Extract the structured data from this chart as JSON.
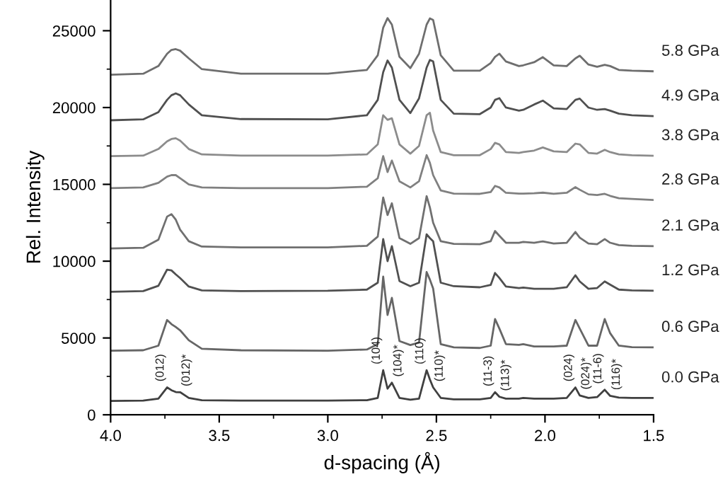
{
  "chart_data": {
    "type": "line",
    "xlabel": "d-spacing (Å)",
    "ylabel": "Rel. Intensity",
    "xlim": [
      4.0,
      1.5
    ],
    "ylim": [
      0,
      27000
    ],
    "xticks": [
      {
        "value": 4,
        "label": "4.0"
      },
      {
        "value": 3.75,
        "label": null
      },
      3.5,
      {
        "value": 3.25,
        "label": null
      },
      {
        "value": 3,
        "label": "3.0"
      },
      {
        "value": 2.75,
        "label": null
      },
      2.5,
      {
        "value": 2.25,
        "label": null
      },
      {
        "value": 2,
        "label": "2.0"
      },
      {
        "value": 1.75,
        "label": null
      },
      1.5
    ],
    "yticks": [
      0,
      {
        "value": 2500,
        "label": null
      },
      5000,
      {
        "value": 7500,
        "label": null
      },
      10000,
      {
        "value": 12500,
        "label": null
      },
      15000,
      {
        "value": 17500,
        "label": null
      },
      20000,
      {
        "value": 22500,
        "label": null
      },
      25000
    ],
    "grid": false,
    "legend": false,
    "marker": "none",
    "line_style": "solid",
    "x": [
      4.0,
      3.85,
      3.78,
      3.74,
      3.72,
      3.7,
      3.68,
      3.64,
      3.58,
      3.4,
      3.0,
      2.82,
      2.77,
      2.745,
      2.725,
      2.705,
      2.67,
      2.62,
      2.58,
      2.545,
      2.53,
      2.515,
      2.48,
      2.42,
      2.3,
      2.25,
      2.23,
      2.21,
      2.18,
      2.12,
      2.1,
      2.05,
      2.01,
      1.96,
      1.9,
      1.86,
      1.84,
      1.8,
      1.76,
      1.725,
      1.7,
      1.66,
      1.6,
      1.5
    ],
    "series": [
      {
        "name": "0.0 GPa",
        "color": "#404040",
        "values": [
          900,
          920,
          1050,
          1780,
          1600,
          1480,
          1470,
          1100,
          950,
          920,
          920,
          950,
          1100,
          2900,
          1700,
          2090,
          1100,
          980,
          1050,
          2900,
          2300,
          1780,
          1100,
          1000,
          1000,
          1100,
          1470,
          1170,
          1050,
          1050,
          1100,
          1050,
          1050,
          1050,
          1100,
          1780,
          1260,
          1100,
          1150,
          1630,
          1230,
          1120,
          1100,
          1100
        ]
      },
      {
        "name": "0.6 GPa",
        "color": "#666666",
        "values": [
          4170,
          4200,
          4500,
          6170,
          5900,
          5710,
          5500,
          4850,
          4300,
          4200,
          4170,
          4250,
          4600,
          8990,
          6500,
          7610,
          4800,
          4540,
          4700,
          9290,
          8800,
          8220,
          4600,
          4390,
          4350,
          4500,
          6230,
          5610,
          4600,
          4550,
          4600,
          4450,
          4450,
          4450,
          4500,
          6170,
          5610,
          4500,
          4500,
          6230,
          5310,
          4500,
          4400,
          4390
        ]
      },
      {
        "name": "1.2 GPa",
        "color": "#505050",
        "values": [
          8010,
          8050,
          8400,
          9450,
          9400,
          9140,
          8900,
          8350,
          8100,
          8050,
          8070,
          8150,
          8600,
          11440,
          10000,
          10980,
          8700,
          8370,
          8600,
          11750,
          11500,
          11290,
          8600,
          8370,
          8300,
          8450,
          9230,
          8900,
          8350,
          8250,
          8280,
          8200,
          8200,
          8200,
          8300,
          9080,
          8680,
          8200,
          8250,
          8680,
          8470,
          8150,
          8100,
          8070
        ]
      },
      {
        "name": "2.1 GPa",
        "color": "#707070",
        "values": [
          10830,
          10870,
          11400,
          12900,
          13060,
          12700,
          12050,
          11300,
          10950,
          10900,
          10900,
          11000,
          11600,
          14140,
          13000,
          13770,
          11500,
          11130,
          11500,
          14230,
          13500,
          12500,
          11300,
          11130,
          11100,
          11300,
          11960,
          11650,
          11200,
          11200,
          11250,
          11200,
          11290,
          11150,
          11200,
          11900,
          11530,
          11150,
          11100,
          11440,
          11200,
          11050,
          11000,
          10980
        ]
      },
      {
        "name": "2.8 GPa",
        "color": "#808080",
        "values": [
          14750,
          14800,
          15100,
          15500,
          15600,
          15600,
          15400,
          15000,
          14800,
          14750,
          14750,
          14850,
          15400,
          16840,
          15800,
          16550,
          15200,
          14800,
          15200,
          16900,
          16400,
          15600,
          14600,
          14400,
          14380,
          14500,
          14900,
          14800,
          14450,
          14400,
          14400,
          14420,
          14460,
          14380,
          14450,
          14820,
          14650,
          14350,
          14300,
          14380,
          14250,
          14100,
          14050,
          13980
        ]
      },
      {
        "name": "3.8 GPa",
        "color": "#8c8c8c",
        "values": [
          16840,
          16870,
          17300,
          17800,
          17950,
          18000,
          17850,
          17300,
          16950,
          16870,
          16870,
          16950,
          17600,
          19500,
          19200,
          19300,
          17600,
          17000,
          17500,
          19500,
          19660,
          18500,
          17100,
          16900,
          16900,
          17300,
          17700,
          17600,
          17100,
          17050,
          17100,
          17200,
          17400,
          17150,
          17100,
          17650,
          17600,
          17050,
          17000,
          17250,
          17100,
          16950,
          16900,
          16860
        ]
      },
      {
        "name": "4.9 GPa",
        "color": "#505050",
        "values": [
          19170,
          19230,
          19700,
          20500,
          20800,
          20920,
          20800,
          20200,
          19500,
          19250,
          19230,
          19500,
          20500,
          22300,
          23060,
          22600,
          20500,
          19640,
          20600,
          22600,
          23100,
          23000,
          20500,
          19600,
          19570,
          20000,
          20500,
          20610,
          20000,
          19800,
          19850,
          20200,
          20450,
          19950,
          19900,
          20500,
          20580,
          20000,
          19850,
          19900,
          19800,
          19600,
          19500,
          19440
        ]
      },
      {
        "name": "5.8 GPa",
        "color": "#6e6e6e",
        "values": [
          22140,
          22200,
          22700,
          23500,
          23750,
          23800,
          23700,
          23200,
          22500,
          22200,
          22200,
          22450,
          23400,
          25200,
          25820,
          25400,
          23300,
          22570,
          23500,
          25400,
          25800,
          25700,
          23400,
          22400,
          22400,
          22900,
          23300,
          23500,
          23000,
          22700,
          22750,
          22950,
          23280,
          22750,
          22700,
          23200,
          23370,
          22800,
          22650,
          22780,
          22700,
          22450,
          22400,
          22360
        ]
      }
    ],
    "annotations": [
      {
        "text": "(012)",
        "x": 3.74,
        "y": 1780
      },
      {
        "text": "(012)*",
        "x": 3.68,
        "y": 1470
      },
      {
        "text": "(104)",
        "x": 2.745,
        "y": 2900
      },
      {
        "text": "(104)*",
        "x": 2.705,
        "y": 2090
      },
      {
        "text": "(110)",
        "x": 2.545,
        "y": 2900
      },
      {
        "text": "(110)*",
        "x": 2.515,
        "y": 1780
      },
      {
        "text": "(11-3)",
        "x": 2.23,
        "y": 1470
      },
      {
        "text": "(113)*",
        "x": 2.21,
        "y": 1170
      },
      {
        "text": "(024)",
        "x": 1.86,
        "y": 1780
      },
      {
        "text": "(024)*",
        "x": 1.84,
        "y": 1260
      },
      {
        "text": "(11-6)",
        "x": 1.725,
        "y": 1630
      },
      {
        "text": "(116)*",
        "x": 1.7,
        "y": 1230
      }
    ]
  }
}
